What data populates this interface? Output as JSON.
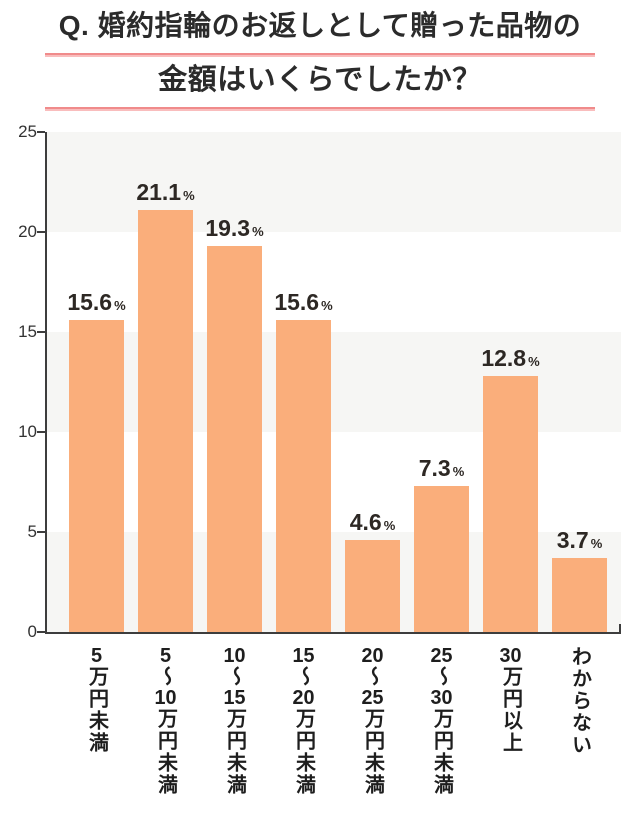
{
  "title": {
    "line1": "Q. 婚約指輪のお返しとして贈った品物の",
    "line2": "金額はいくらでしたか？"
  },
  "colors": {
    "bar": "#FAAE7B",
    "band_gray": "#F6F6F4",
    "axis": "#3D3D3D",
    "underline_top": "#F08B8B",
    "underline_bottom": "#F9BDBD",
    "title_text": "#2B2B2B",
    "value_label_text": "#2D2824"
  },
  "chart_data": {
    "type": "bar",
    "title": "Q. 婚約指輪のお返しとして贈った品物の金額はいくらでしたか？",
    "categories": [
      "5万円未満",
      "5～10万円未満",
      "10～15万円未満",
      "15～20万円未満",
      "20～25万円未満",
      "25～30万円未満",
      "30万円以上",
      "わからない"
    ],
    "values": [
      15.6,
      21.1,
      19.3,
      15.6,
      4.6,
      7.3,
      12.8,
      3.7
    ],
    "unit": "%",
    "xlabel": "",
    "ylabel": "",
    "ylim": [
      0,
      25
    ],
    "yticks": [
      0,
      5,
      10,
      15,
      20,
      25
    ],
    "grid": "alternating horizontal bands every 5 units (gray band at 20-25, 10-15, 0-5)",
    "legend": "none",
    "bar_color": "#FAAE7B"
  }
}
